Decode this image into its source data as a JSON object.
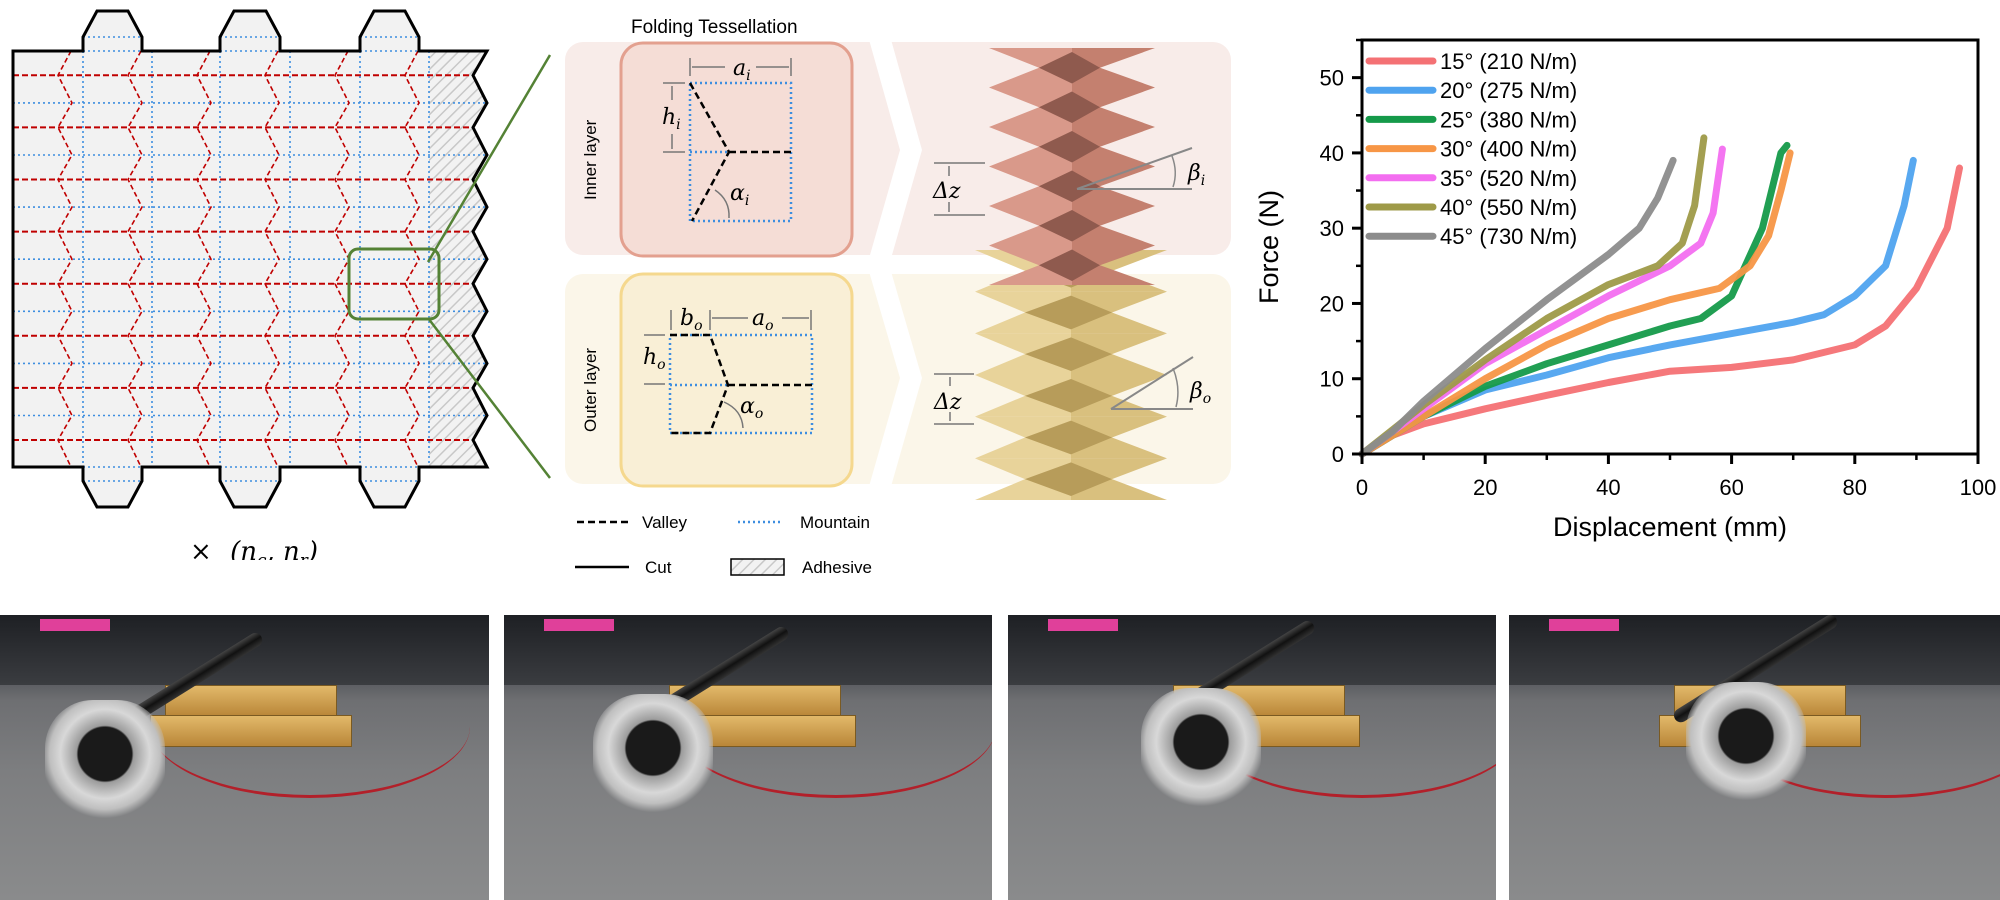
{
  "pattern": {
    "label_times": "×",
    "label_nc": "(n",
    "label_c": "c",
    "label_nr": ", n",
    "label_r": "r",
    "label_close": ")",
    "colors": {
      "valley": "#c00000",
      "mountain": "#3d8ee0",
      "cut": "#000000",
      "zoom_box": "#548235",
      "sheet": "#f2f2f2"
    }
  },
  "tessellation": {
    "title": "Folding Tessellation",
    "inner_label": "Inner layer",
    "outer_label": "Outer layer",
    "inner": {
      "a": "a",
      "a_sub": "i",
      "h": "h",
      "h_sub": "i",
      "alpha": "α",
      "alpha_sub": "i",
      "dz": "Δz",
      "beta": "β",
      "beta_sub": "i"
    },
    "outer": {
      "a": "a",
      "a_sub": "o",
      "b": "b",
      "b_sub": "o",
      "h": "h",
      "h_sub": "o",
      "alpha": "α",
      "alpha_sub": "o",
      "dz": "Δz",
      "beta": "β",
      "beta_sub": "o"
    },
    "legend": {
      "valley": "Valley",
      "mountain": "Mountain",
      "cut": "Cut",
      "adhesive": "Adhesive"
    }
  },
  "chart_data": {
    "type": "line",
    "xlabel": "Displacement (mm)",
    "ylabel": "Force (N)",
    "xlim": [
      0,
      100
    ],
    "ylim": [
      0,
      55
    ],
    "xticks": [
      0,
      20,
      40,
      60,
      80,
      100
    ],
    "yticks": [
      0,
      10,
      20,
      30,
      40,
      50
    ],
    "grid": false,
    "legend_position": "top-left",
    "series": [
      {
        "name": "15° (210 N/m)",
        "color": "#f47174",
        "points": [
          [
            0,
            0
          ],
          [
            5,
            2.5
          ],
          [
            10,
            4
          ],
          [
            20,
            6
          ],
          [
            30,
            7.8
          ],
          [
            40,
            9.5
          ],
          [
            50,
            11
          ],
          [
            60,
            11.5
          ],
          [
            70,
            12.5
          ],
          [
            80,
            14.5
          ],
          [
            85,
            17
          ],
          [
            90,
            22
          ],
          [
            95,
            30
          ],
          [
            97,
            38
          ]
        ]
      },
      {
        "name": "20° (275 N/m)",
        "color": "#4fa3ef",
        "points": [
          [
            0,
            0
          ],
          [
            10,
            5
          ],
          [
            20,
            8.5
          ],
          [
            30,
            10.5
          ],
          [
            40,
            12.8
          ],
          [
            50,
            14.5
          ],
          [
            60,
            16
          ],
          [
            70,
            17.5
          ],
          [
            75,
            18.5
          ],
          [
            80,
            21
          ],
          [
            85,
            25
          ],
          [
            88,
            33
          ],
          [
            89.5,
            39
          ]
        ]
      },
      {
        "name": "25° (380 N/m)",
        "color": "#159a4a",
        "points": [
          [
            0,
            0
          ],
          [
            10,
            5
          ],
          [
            20,
            9
          ],
          [
            30,
            12
          ],
          [
            40,
            14.5
          ],
          [
            50,
            17
          ],
          [
            55,
            18
          ],
          [
            60,
            21
          ],
          [
            65,
            30
          ],
          [
            68,
            40
          ],
          [
            69,
            41
          ]
        ]
      },
      {
        "name": "30° (400 N/m)",
        "color": "#f79646",
        "points": [
          [
            0,
            0
          ],
          [
            10,
            5
          ],
          [
            20,
            10
          ],
          [
            30,
            14.5
          ],
          [
            40,
            18
          ],
          [
            50,
            20.5
          ],
          [
            58,
            22
          ],
          [
            63,
            25
          ],
          [
            66,
            29
          ],
          [
            68,
            35
          ],
          [
            69.5,
            40
          ]
        ]
      },
      {
        "name": "35° (520 N/m)",
        "color": "#f36ef0",
        "points": [
          [
            0,
            0
          ],
          [
            10,
            6
          ],
          [
            20,
            12
          ],
          [
            30,
            16.5
          ],
          [
            40,
            21
          ],
          [
            50,
            25
          ],
          [
            55,
            28
          ],
          [
            57,
            32
          ],
          [
            58.5,
            40.5
          ]
        ]
      },
      {
        "name": "40° (550 N/m)",
        "color": "#9e9a48",
        "points": [
          [
            0,
            0
          ],
          [
            10,
            6.5
          ],
          [
            20,
            12.5
          ],
          [
            30,
            18
          ],
          [
            40,
            22.5
          ],
          [
            48,
            25
          ],
          [
            52,
            28
          ],
          [
            54,
            33
          ],
          [
            55.5,
            42
          ]
        ]
      },
      {
        "name": "45° (730 N/m)",
        "color": "#8c8c8c",
        "points": [
          [
            0,
            0
          ],
          [
            5,
            3
          ],
          [
            10,
            7
          ],
          [
            20,
            14
          ],
          [
            30,
            20.5
          ],
          [
            40,
            26.5
          ],
          [
            45,
            30
          ],
          [
            48,
            34
          ],
          [
            50.5,
            39
          ]
        ]
      }
    ]
  }
}
